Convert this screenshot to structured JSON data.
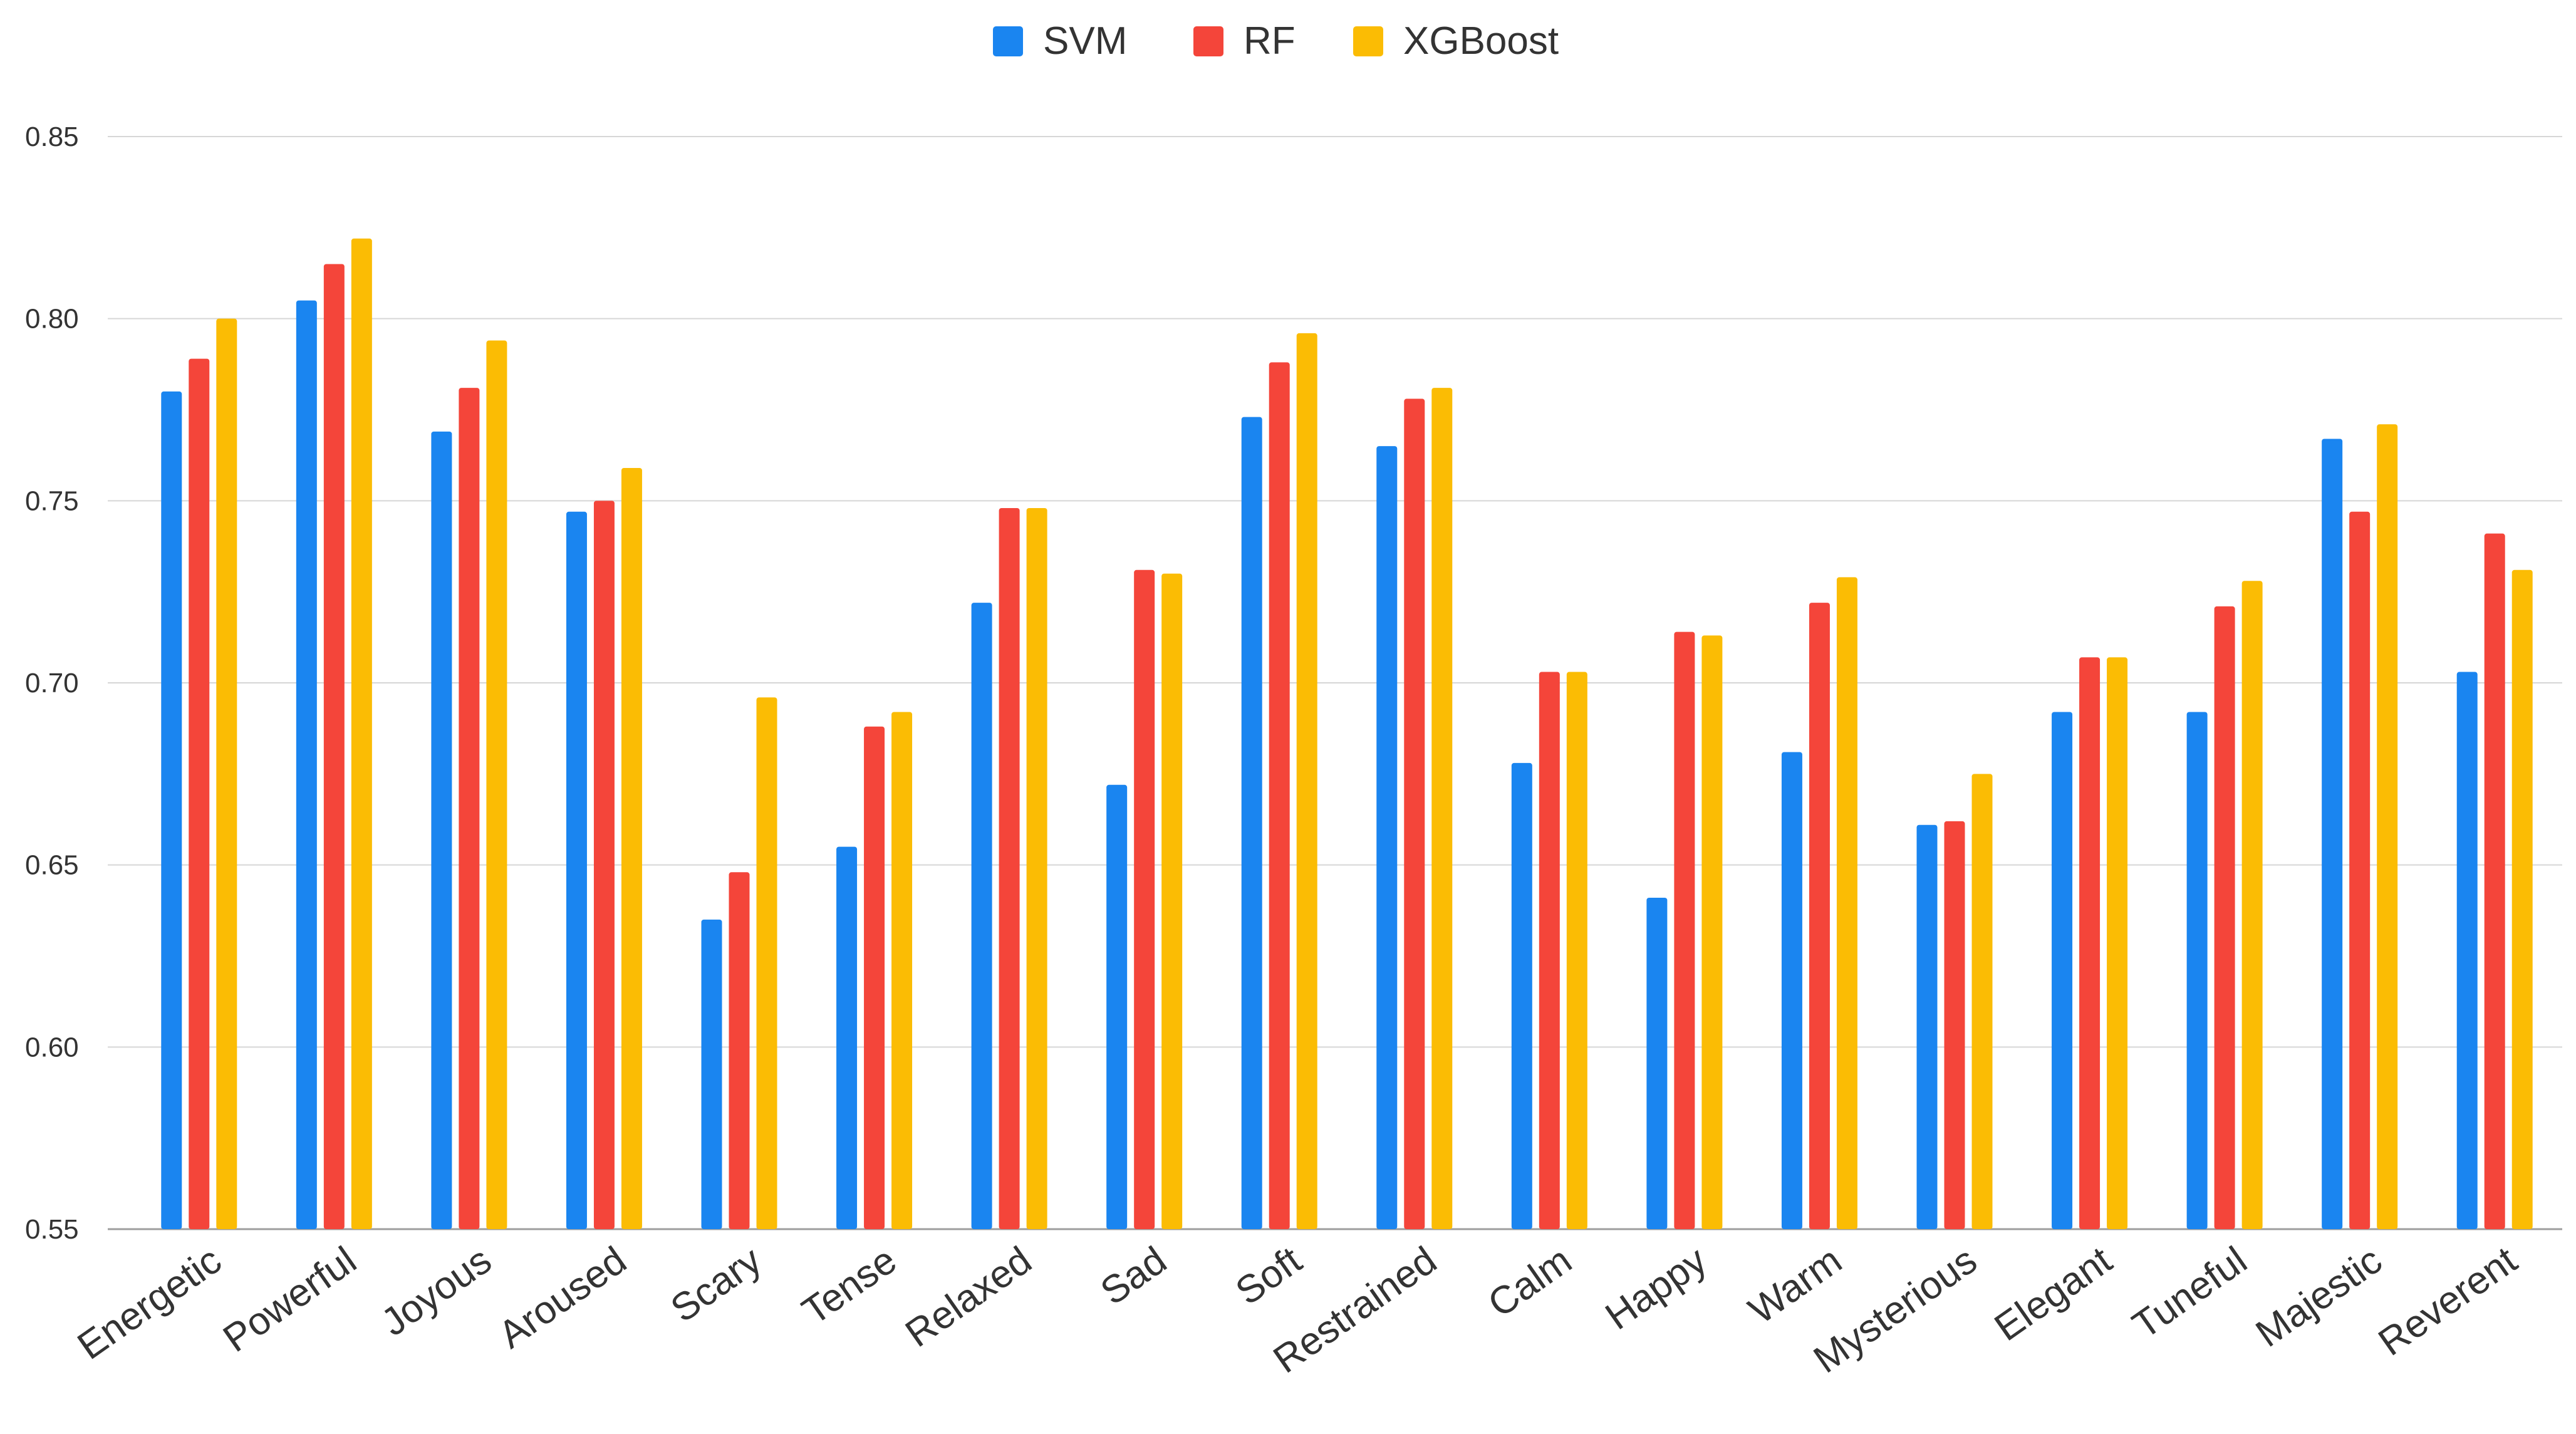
{
  "chart_data": {
    "type": "bar",
    "title": "",
    "xlabel": "",
    "ylabel": "",
    "ylim": [
      0.55,
      0.85
    ],
    "yticks": [
      "0.55",
      "0.60",
      "0.65",
      "0.70",
      "0.75",
      "0.80",
      "0.85"
    ],
    "grid": true,
    "legend_position": "top-center",
    "categories": [
      "Energetic",
      "Powerful",
      "Joyous",
      "Aroused",
      "Scary",
      "Tense",
      "Relaxed",
      "Sad",
      "Soft",
      "Restrained",
      "Calm",
      "Happy",
      "Warm",
      "Mysterious",
      "Elegant",
      "Tuneful",
      "Majestic",
      "Reverent"
    ],
    "series": [
      {
        "name": "SVM",
        "color": "#1a85f0",
        "values": [
          0.78,
          0.805,
          0.769,
          0.747,
          0.635,
          0.655,
          0.722,
          0.672,
          0.773,
          0.765,
          0.678,
          0.641,
          0.681,
          0.661,
          0.692,
          0.692,
          0.767,
          0.703
        ]
      },
      {
        "name": "RF",
        "color": "#f4453a",
        "values": [
          0.789,
          0.815,
          0.781,
          0.75,
          0.648,
          0.688,
          0.748,
          0.731,
          0.788,
          0.778,
          0.703,
          0.714,
          0.722,
          0.662,
          0.707,
          0.721,
          0.747,
          0.741
        ]
      },
      {
        "name": "XGBoost",
        "color": "#fbbc04",
        "values": [
          0.8,
          0.822,
          0.794,
          0.759,
          0.696,
          0.692,
          0.748,
          0.73,
          0.796,
          0.781,
          0.703,
          0.713,
          0.729,
          0.675,
          0.707,
          0.728,
          0.771,
          0.731
        ]
      }
    ]
  }
}
